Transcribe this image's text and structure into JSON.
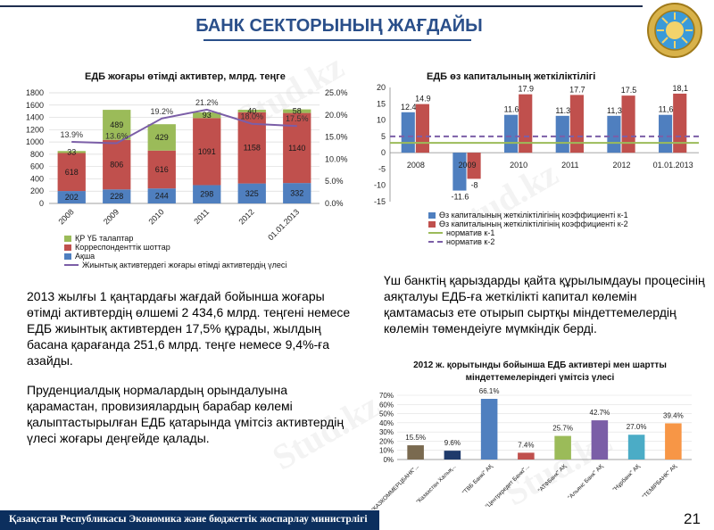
{
  "header": {
    "title": "БАНК СЕКТОРЫНЫҢ ЖАҒДАЙЫ"
  },
  "footer": {
    "ministry": "Қазақстан Республикасы Экономика және бюджеттік жоспарлау министрлігі",
    "page_number": "21"
  },
  "watermark": "Stud.kz",
  "paragraphs": {
    "p1": "2013 жылғы 1 қаңтардағы жағдай бойынша жоғары өтімді активтердің өлшемі 2 434,6 млрд. теңгені немесе ЕДБ жиынтық активтерден 17,5% құрады, жылдың басана қарағанда 251,6 млрд. теңге немесе 9,4%-ға азайды.",
    "p2": "Пруденциалдық нормалардың орындалуына қарамастан, провизиялардың барабар көлемі қалыптастырылған ЕДБ қатарында үмітсіз активтердің үлесі жоғары деңгейде қалады.",
    "p3": "Үш банктің қарыздарды қайта құрылымдауы процесінің аяқталуы ЕДБ-ға жеткілікті капитал көлемін қамтамасыз ете отырып сыртқы міндеттемелердің көлемін төмендеіуге мүмкіндік берді."
  },
  "chart_data": [
    {
      "type": "bar",
      "stacked": true,
      "title": "ЕДБ жоғары өтімді активтер, млрд. теңге",
      "categories": [
        "2008",
        "2009",
        "2010",
        "2011",
        "2012",
        "01.01.2013"
      ],
      "series": [
        {
          "name": "Ақша",
          "values": [
            202,
            228,
            244,
            298,
            325,
            332
          ],
          "color": "#4f7fbf"
        },
        {
          "name": "Корреспонденттік шоттар",
          "values": [
            618,
            806,
            616,
            1091,
            1158,
            1140
          ],
          "color": "#c0504d"
        },
        {
          "name": "ҚР ҮБ талаптар",
          "values": [
            33,
            489,
            429,
            93,
            40,
            58
          ],
          "color": "#9bbb59"
        }
      ],
      "line_series": {
        "name": "Жиынтық активтердегі жоғары өтімді активтердің үлесі",
        "values": [
          13.9,
          13.6,
          19.2,
          21.2,
          18.0,
          17.5
        ],
        "labels": [
          "13.9%",
          "13.6%",
          "19.2%",
          "21.2%",
          "18.0%",
          "17.5%"
        ],
        "color": "#7b5ea7"
      },
      "y_left": {
        "min": 0,
        "max": 1800,
        "ticks": [
          0,
          200,
          400,
          600,
          800,
          1000,
          1200,
          1400,
          1600,
          1800
        ]
      },
      "y_right": {
        "min": 0,
        "max": 25,
        "ticks": [
          "0.0%",
          "5.0%",
          "10.0%",
          "15.0%",
          "20.0%",
          "25.0%"
        ]
      },
      "legend_position": "bottom"
    },
    {
      "type": "bar",
      "title": "ЕДБ өз капиталының жеткіліктілігі",
      "categories": [
        "2008",
        "2009",
        "2010",
        "2011",
        "2012",
        "01.01.2013"
      ],
      "series": [
        {
          "name": "Өз капиталының жеткіліктілігінің коэффициенті к-1",
          "values": [
            12.4,
            -11.6,
            11.6,
            11.3,
            11.3,
            11.6
          ],
          "labels": [
            "12.4",
            "-11.6",
            "11.6",
            "11.3",
            "11,3",
            "11,6"
          ],
          "color": "#4f7fbf"
        },
        {
          "name": "Өз капиталының жеткіліктілігінің коэффициенті к-2",
          "values": [
            14.9,
            -8,
            17.9,
            17.7,
            17.5,
            18.1
          ],
          "labels": [
            "14.9",
            "-8",
            "17.9",
            "17.7",
            "17.5",
            "18,1"
          ],
          "color": "#c0504d"
        }
      ],
      "norm_lines": [
        {
          "name": "норматив к-1",
          "value": 3,
          "color": "#9bbb59",
          "style": "solid"
        },
        {
          "name": "норматив к-2",
          "value": 5,
          "color": "#7b5ea7",
          "style": "dashed"
        }
      ],
      "y": {
        "min": -15,
        "max": 20,
        "ticks": [
          -15,
          -10,
          -5,
          0,
          5,
          10,
          15,
          20
        ]
      },
      "legend_position": "bottom"
    },
    {
      "type": "bar",
      "title": "2012 ж. қорытынды бойынша ЕДБ активтері мен шартты міндеттемелеріндегі үмітсіз үлесі",
      "categories": [
        "\"КАЗКОММЕРЦБАНК\"...",
        "\"Казахстан Халық...",
        "\"ТВБ Банкі\" АҚ",
        "\"Центркредит Банкі\"...",
        "\"АТФБанк\" АҚ",
        "\"Альянс Банк\" АҚ",
        "\"Нұрбанк\" АҚ",
        "\"ТЕМІРБАНК\" АҚ"
      ],
      "values": [
        15.5,
        9.6,
        66.1,
        7.4,
        25.7,
        42.7,
        27.0,
        39.4
      ],
      "labels": [
        "15.5%",
        "9.6%",
        "66.1%",
        "7.4%",
        "25.7%",
        "42.7%",
        "27.0%",
        "39.4%"
      ],
      "colors": [
        "#7a6a50",
        "#1f3a6b",
        "#4f7fbf",
        "#c0504d",
        "#9bbb59",
        "#7b5ea7",
        "#4bacc6",
        "#f79646"
      ],
      "y": {
        "min": 0,
        "max": 70,
        "ticks": [
          "0%",
          "10%",
          "20%",
          "30%",
          "40%",
          "50%",
          "60%",
          "70%"
        ]
      }
    }
  ]
}
